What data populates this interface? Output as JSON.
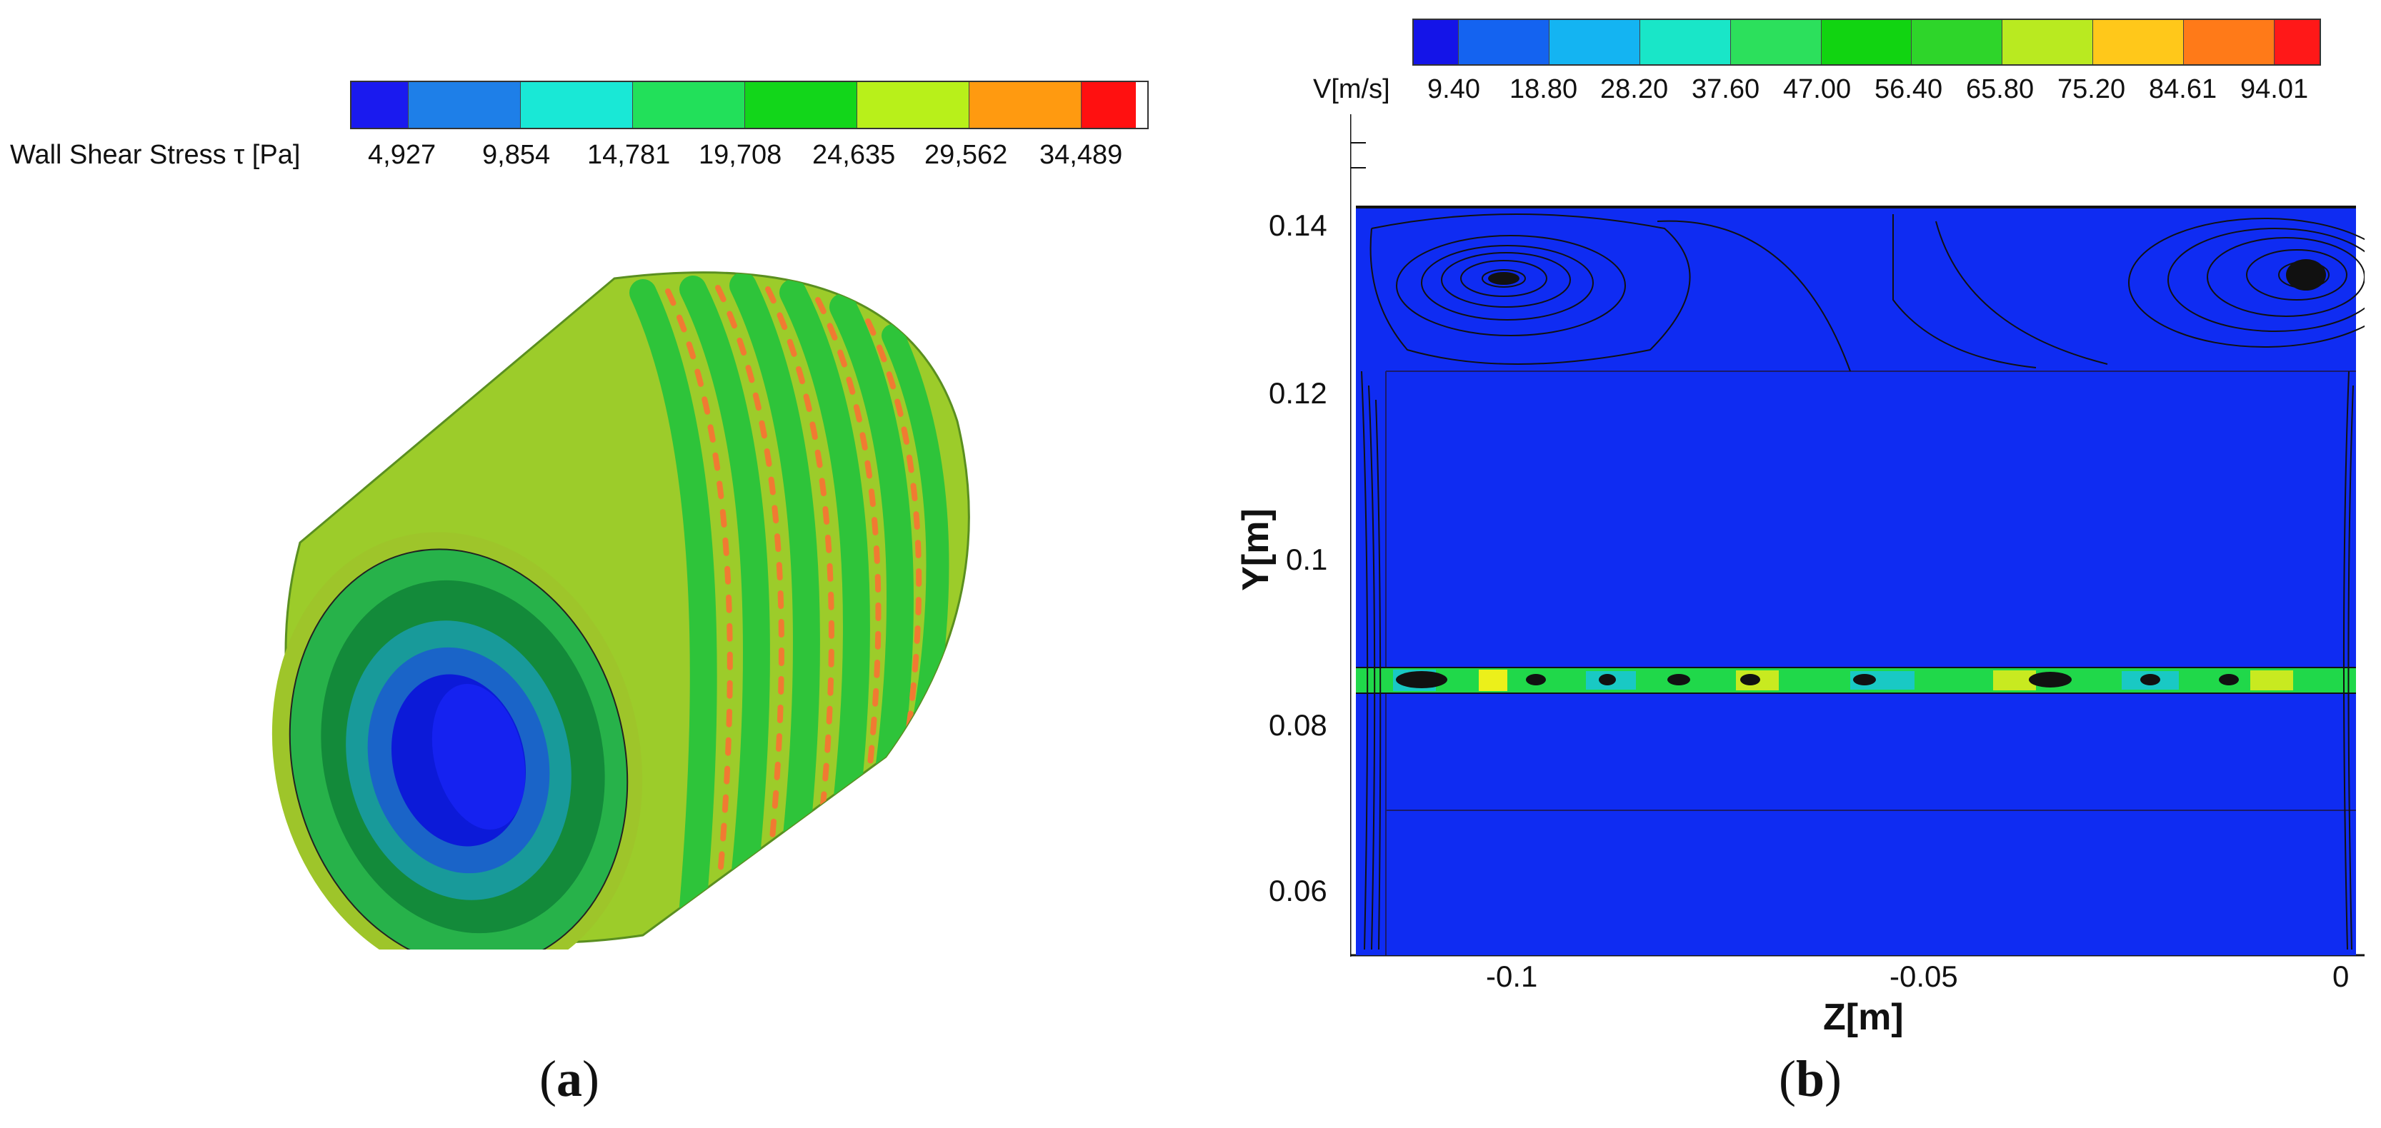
{
  "panel_a": {
    "legend_title": "Wall Shear Stress τ [Pa]",
    "legend_colors": [
      "#1a1aef",
      "#1e7fe8",
      "#19e8d6",
      "#22e05a",
      "#12d61a",
      "#b8f01a",
      "#ff9a10",
      "#ff1010"
    ],
    "legend_ticks": [
      "4,927",
      "9,854",
      "14,781",
      "19,708",
      "24,635",
      "29,562",
      "34,489"
    ],
    "caption_open": "(",
    "caption_letter": "a",
    "caption_close": ")"
  },
  "panel_b": {
    "legend_title": "V[m/s]",
    "legend_colors": [
      "#1414e8",
      "#1463f0",
      "#14b4f2",
      "#19e6c8",
      "#2ce05c",
      "#11d411",
      "#2ed52a",
      "#b9ea20",
      "#ffc81a",
      "#ff7a18",
      "#ff1818"
    ],
    "legend_ticks": [
      "9.40",
      "18.80",
      "28.20",
      "37.60",
      "47.00",
      "56.40",
      "65.80",
      "75.20",
      "84.61",
      "94.01"
    ],
    "axis_x_title": "Z[m]",
    "axis_y_title": "Y[m]",
    "x_ticks": [
      "-0.1",
      "-0.05",
      "0"
    ],
    "y_ticks": [
      "0.14",
      "0.12",
      "0.1",
      "0.08",
      "0.06"
    ],
    "caption_open": "(",
    "caption_letter": "b",
    "caption_close": ")",
    "colors": {
      "field": "#0f2cf2",
      "gap": "#20d84a"
    }
  }
}
